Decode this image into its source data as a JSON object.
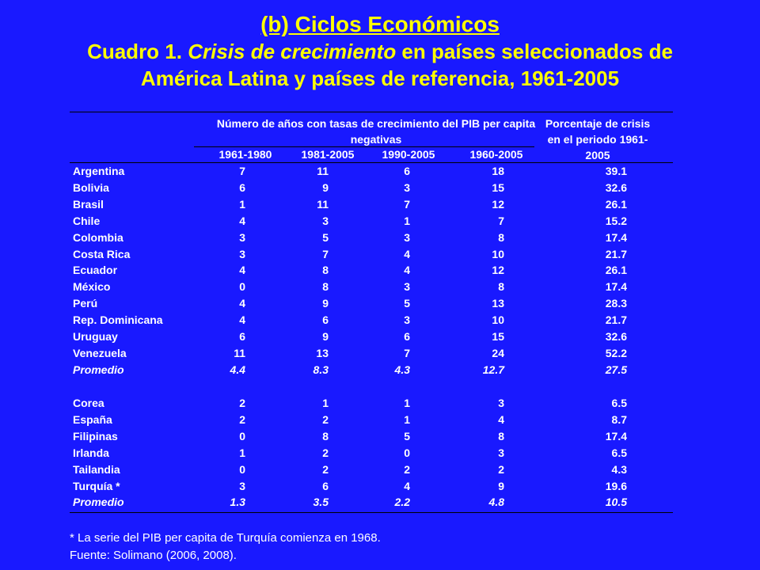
{
  "title": {
    "heading": "(b) Ciclos Económicos",
    "line1_prefix": "Cuadro 1. ",
    "line1_italic": "Crisis de crecimiento",
    "line1_suffix": " en países seleccionados de",
    "line2": "América Latina y países de referencia, 1961-2005"
  },
  "table": {
    "group_header": "Número de años con tasas de crecimiento del PIB per capita negativas",
    "periods": [
      "1961-1980",
      "1981-2005",
      "1990-2005",
      "1960-2005"
    ],
    "pct_header": "Porcentaje de crisis en el periodo 1961-2005",
    "latam_rows": [
      {
        "country": "Argentina",
        "v1": "7",
        "v2": "11",
        "v3": "6",
        "v4": "18",
        "pct": "39.1"
      },
      {
        "country": "Bolivia",
        "v1": "6",
        "v2": "9",
        "v3": "3",
        "v4": "15",
        "pct": "32.6"
      },
      {
        "country": "Brasil",
        "v1": "1",
        "v2": "11",
        "v3": "7",
        "v4": "12",
        "pct": "26.1"
      },
      {
        "country": "Chile",
        "v1": "4",
        "v2": "3",
        "v3": "1",
        "v4": "7",
        "pct": "15.2"
      },
      {
        "country": "Colombia",
        "v1": "3",
        "v2": "5",
        "v3": "3",
        "v4": "8",
        "pct": "17.4"
      },
      {
        "country": "Costa Rica",
        "v1": "3",
        "v2": "7",
        "v3": "4",
        "v4": "10",
        "pct": "21.7"
      },
      {
        "country": "Ecuador",
        "v1": "4",
        "v2": "8",
        "v3": "4",
        "v4": "12",
        "pct": "26.1"
      },
      {
        "country": "México",
        "v1": "0",
        "v2": "8",
        "v3": "3",
        "v4": "8",
        "pct": "17.4"
      },
      {
        "country": "Perú",
        "v1": "4",
        "v2": "9",
        "v3": "5",
        "v4": "13",
        "pct": "28.3"
      },
      {
        "country": "Rep. Dominicana",
        "v1": "4",
        "v2": "6",
        "v3": "3",
        "v4": "10",
        "pct": "21.7"
      },
      {
        "country": "Uruguay",
        "v1": "6",
        "v2": "9",
        "v3": "6",
        "v4": "15",
        "pct": "32.6"
      },
      {
        "country": "Venezuela",
        "v1": "11",
        "v2": "13",
        "v3": "7",
        "v4": "24",
        "pct": "52.2"
      }
    ],
    "latam_avg": {
      "country": "Promedio",
      "v1": "4.4",
      "v2": "8.3",
      "v3": "4.3",
      "v4": "12.7",
      "pct": "27.5"
    },
    "ref_rows": [
      {
        "country": "Corea",
        "v1": "2",
        "v2": "1",
        "v3": "1",
        "v4": "3",
        "pct": "6.5"
      },
      {
        "country": "España",
        "v1": "2",
        "v2": "2",
        "v3": "1",
        "v4": "4",
        "pct": "8.7"
      },
      {
        "country": "Filipinas",
        "v1": "0",
        "v2": "8",
        "v3": "5",
        "v4": "8",
        "pct": "17.4"
      },
      {
        "country": "Irlanda",
        "v1": "1",
        "v2": "2",
        "v3": "0",
        "v4": "3",
        "pct": "6.5"
      },
      {
        "country": "Tailandia",
        "v1": "0",
        "v2": "2",
        "v3": "2",
        "v4": "2",
        "pct": "4.3"
      },
      {
        "country": "Turquía *",
        "v1": "3",
        "v2": "6",
        "v3": "4",
        "v4": "9",
        "pct": "19.6"
      }
    ],
    "ref_avg": {
      "country": "Promedio",
      "v1": "1.3",
      "v2": "3.5",
      "v3": "2.2",
      "v4": "4.8",
      "pct": "10.5"
    }
  },
  "footnotes": {
    "note": "* La serie del PIB per capita de Turquía comienza en 1968.",
    "source": "Fuente: Solimano (2006, 2008)."
  },
  "colors": {
    "background": "#1919ff",
    "title": "#ffff00",
    "text": "#ffffff"
  }
}
